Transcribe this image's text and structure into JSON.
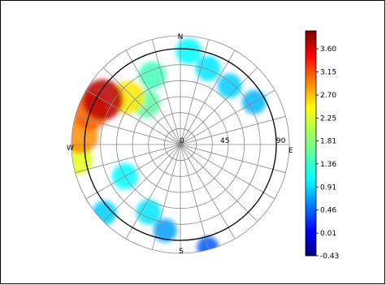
{
  "chart_data": {
    "type": "heatmap",
    "projection": "polar sky plot (azimuth / zenith angle)",
    "directions": {
      "north": "N",
      "east": "E",
      "south": "S",
      "west": "W"
    },
    "radial_ticks": [
      "0",
      "45",
      "90"
    ],
    "radial_ring_step_deg": 15,
    "azimuth_spoke_step_deg": 15,
    "colormap": "jet",
    "colorbar": {
      "min": -0.43,
      "max": 3.95,
      "tick_labels": [
        "3.60",
        "3.15",
        "2.70",
        "2.25",
        "1.81",
        "1.36",
        "0.91",
        "0.46",
        "0.01",
        "-0.43"
      ],
      "tick_values": [
        3.6,
        3.15,
        2.7,
        2.25,
        1.81,
        1.36,
        0.91,
        0.46,
        0.01,
        -0.43
      ]
    },
    "hotspots": [
      {
        "az": 300,
        "zen": 84,
        "value": 3.7
      },
      {
        "az": 290,
        "zen": 90,
        "value": 3.0
      },
      {
        "az": 275,
        "zen": 94,
        "value": 2.8
      },
      {
        "az": 262,
        "zen": 98,
        "value": 2.2
      },
      {
        "az": 312,
        "zen": 66,
        "value": 2.4
      },
      {
        "az": 320,
        "zen": 50,
        "value": 1.6
      },
      {
        "az": 338,
        "zen": 70,
        "value": 1.5
      },
      {
        "az": 5,
        "zen": 88,
        "value": 1.2
      },
      {
        "az": 20,
        "zen": 76,
        "value": 1.1
      },
      {
        "az": 40,
        "zen": 72,
        "value": 1.0
      },
      {
        "az": 60,
        "zen": 80,
        "value": 0.9
      },
      {
        "az": 240,
        "zen": 60,
        "value": 1.2
      },
      {
        "az": 228,
        "zen": 96,
        "value": 1.0
      },
      {
        "az": 205,
        "zen": 70,
        "value": 1.1
      },
      {
        "az": 190,
        "zen": 82,
        "value": 0.8
      },
      {
        "az": 165,
        "zen": 100,
        "value": 0.5
      }
    ]
  }
}
